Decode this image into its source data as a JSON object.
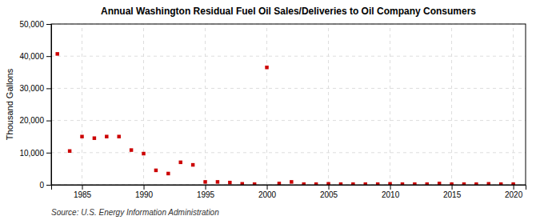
{
  "chart_data": {
    "type": "scatter",
    "title": "Annual Washington Residual Fuel Oil Sales/Deliveries to Oil Company Consumers",
    "ylabel": "Thousand Gallons",
    "annotations": [
      "Source: U.S. Energy Information Administration"
    ],
    "x": [
      1983,
      1984,
      1985,
      1986,
      1987,
      1988,
      1989,
      1990,
      1991,
      1992,
      1993,
      1994,
      1995,
      1996,
      1997,
      1998,
      1999,
      2000,
      2001,
      2002,
      2003,
      2004,
      2005,
      2006,
      2007,
      2008,
      2009,
      2010,
      2011,
      2012,
      2013,
      2014,
      2015,
      2016,
      2017,
      2018,
      2019,
      2020
    ],
    "values": [
      40700,
      10500,
      15000,
      14500,
      15000,
      15000,
      10800,
      9700,
      4500,
      3500,
      7000,
      6200,
      900,
      900,
      700,
      300,
      200,
      36500,
      400,
      900,
      200,
      200,
      300,
      200,
      200,
      200,
      200,
      300,
      200,
      200,
      200,
      400,
      200,
      200,
      200,
      300,
      200,
      200
    ],
    "color": "#cc0000",
    "marker": "square",
    "xlim": [
      1982.5,
      2021
    ],
    "xticks": [
      1985,
      1990,
      1995,
      2000,
      2005,
      2010,
      2015,
      2020
    ],
    "ylim": [
      0,
      50000
    ],
    "yticks": [
      0,
      {
        "value": 10000,
        "label": "10,000"
      },
      {
        "value": 20000,
        "label": "20,000"
      },
      {
        "value": 30000,
        "label": "30,000"
      },
      {
        "value": 40000,
        "label": "40,000"
      },
      {
        "value": 50000,
        "label": "50,000"
      }
    ],
    "grid": true
  }
}
